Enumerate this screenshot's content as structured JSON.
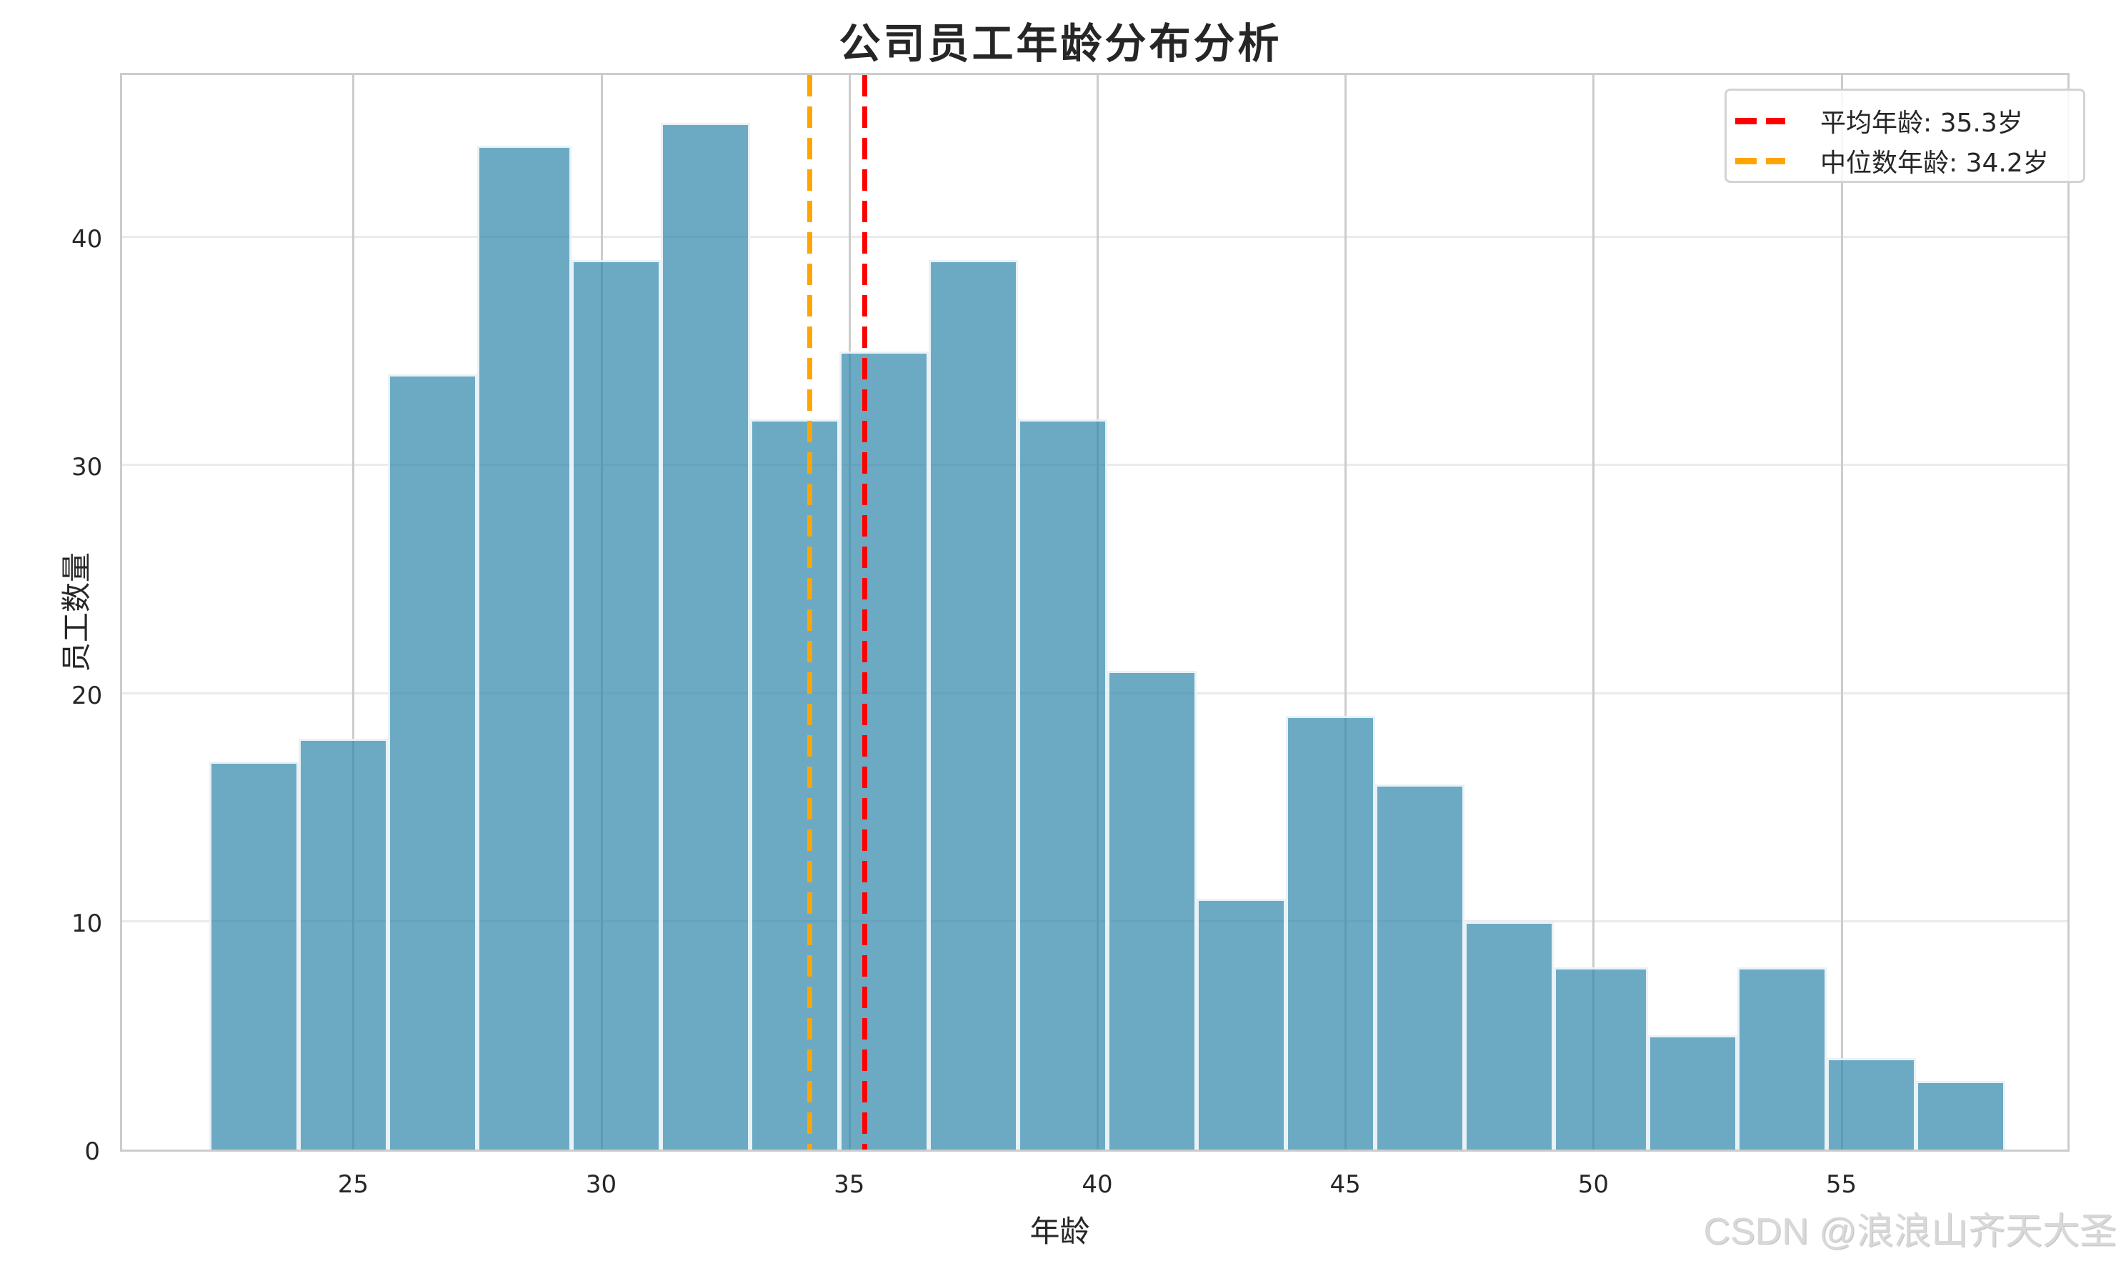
{
  "title": "公司员工年龄分布分析",
  "xlabel": "年龄",
  "ylabel": "员工数量",
  "watermark": "CSDN @浪浪山齐天大圣",
  "colors": {
    "bar": "#2E86AB",
    "mean_line": "#FF0000",
    "median_line": "#FFA500",
    "grid": "#EBEBEB",
    "spine": "#CCCCCC"
  },
  "legend": [
    {
      "label": "平均年龄: 35.3岁",
      "color": "#FF0000",
      "style": "dashed"
    },
    {
      "label": "中位数年龄: 34.2岁",
      "color": "#FFA500",
      "style": "dashed"
    }
  ],
  "x_ticks": [
    "25",
    "30",
    "35",
    "40",
    "45",
    "50",
    "55"
  ],
  "y_ticks": [
    "0",
    "10",
    "20",
    "30",
    "40"
  ],
  "chart_data": {
    "type": "bar",
    "subtype": "histogram",
    "title": "公司员工年龄分布分析",
    "xlabel": "年龄",
    "ylabel": "员工数量",
    "bin_edges": [
      22.1,
      23.9,
      25.7,
      27.5,
      29.4,
      31.2,
      33.0,
      34.8,
      36.6,
      38.4,
      40.2,
      42.0,
      43.8,
      45.6,
      47.4,
      49.2,
      51.1,
      52.9,
      54.7,
      56.5,
      58.3
    ],
    "values": [
      17,
      18,
      34,
      44,
      39,
      45,
      32,
      35,
      39,
      32,
      21,
      11,
      19,
      16,
      10,
      8,
      5,
      8,
      4,
      3
    ],
    "vlines": [
      {
        "name": "平均年龄: 35.3岁",
        "x": 35.3,
        "color": "#FF0000",
        "style": "dashed"
      },
      {
        "name": "中位数年龄: 34.2岁",
        "x": 34.2,
        "color": "#FFA500",
        "style": "dashed"
      }
    ],
    "xlim": [
      20.3,
      59.6
    ],
    "ylim": [
      0,
      47.3
    ],
    "x_ticks": [
      25,
      30,
      35,
      40,
      45,
      50,
      55
    ],
    "y_ticks": [
      0,
      10,
      20,
      30,
      40
    ],
    "grid": true,
    "legend_position": "upper right"
  }
}
